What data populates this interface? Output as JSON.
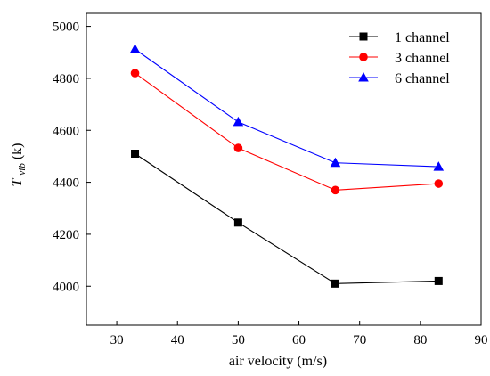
{
  "chart_data": {
    "type": "line",
    "xlabel": "air velocity (m/s)",
    "ylabel": {
      "main": "T",
      "sub": "vib",
      "unit": " (k)"
    },
    "x": [
      33,
      50,
      66,
      83
    ],
    "xlim": [
      25,
      90
    ],
    "ylim": [
      3850,
      5050
    ],
    "xticks": [
      30,
      40,
      50,
      60,
      70,
      80,
      90
    ],
    "yticks": [
      4000,
      4200,
      4400,
      4600,
      4800,
      5000
    ],
    "grid": false,
    "legend_position": "top-right",
    "series": [
      {
        "name": "1 channel",
        "color": "#000000",
        "marker": "square",
        "values": [
          4510,
          4245,
          4010,
          4020
        ]
      },
      {
        "name": "3 channel",
        "color": "#ff0000",
        "marker": "circle",
        "values": [
          4820,
          4532,
          4370,
          4395
        ]
      },
      {
        "name": "6 channel",
        "color": "#0000ff",
        "marker": "triangle",
        "values": [
          4912,
          4632,
          4475,
          4460
        ]
      }
    ]
  }
}
